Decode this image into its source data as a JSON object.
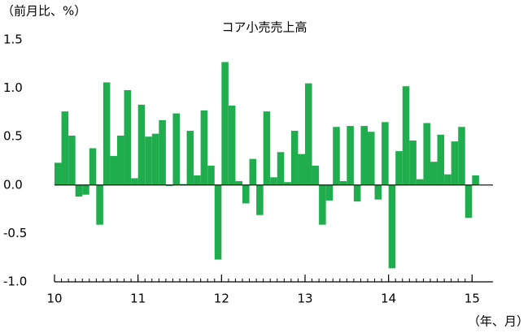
{
  "chart_data": {
    "type": "bar",
    "title": "コア小売売上高",
    "y_label": "（前月比、%）",
    "x_label": "（年、月）",
    "color": "#1fad4e",
    "xlim": [
      10,
      15.25
    ],
    "xticks": [
      10,
      11,
      12,
      13,
      14,
      15
    ],
    "ylim": [
      -1,
      1.5
    ],
    "yticks": [
      1.5,
      {
        "value": 1,
        "label": "1.0"
      },
      0.5,
      {
        "value": 0,
        "label": "0.0"
      },
      -0.5,
      {
        "value": -1,
        "label": "-1.0"
      }
    ],
    "bar_width": 0.0833,
    "x": [
      10,
      10.0833,
      10.1667,
      10.25,
      10.3333,
      10.4167,
      10.5,
      10.5833,
      10.6667,
      10.75,
      10.8333,
      10.9167,
      11,
      11.0833,
      11.1667,
      11.25,
      11.3333,
      11.4167,
      11.5,
      11.5833,
      11.6667,
      11.75,
      11.8333,
      11.9167,
      12,
      12.0833,
      12.1667,
      12.25,
      12.3333,
      12.4167,
      12.5,
      12.5833,
      12.6667,
      12.75,
      12.8333,
      12.9167,
      13,
      13.0833,
      13.1667,
      13.25,
      13.3333,
      13.4167,
      13.5,
      13.5833,
      13.6667,
      13.75,
      13.8333,
      13.9167,
      14,
      14.0833,
      14.1667,
      14.25,
      14.3333,
      14.4167,
      14.5,
      14.5833,
      14.6667,
      14.75,
      14.8333,
      14.9167,
      15
    ],
    "values": [
      0.23,
      0.76,
      0.51,
      -0.12,
      -0.1,
      0.38,
      -0.41,
      1.06,
      0.3,
      0.51,
      0.98,
      0.07,
      0.83,
      0.5,
      0.53,
      0.67,
      -0.01,
      0.74,
      0.01,
      0.56,
      0.1,
      0.77,
      0.2,
      -0.77,
      1.27,
      0.82,
      0.04,
      -0.19,
      0.27,
      -0.31,
      0.76,
      0.08,
      0.34,
      0.03,
      0.56,
      0.32,
      1.05,
      0.2,
      -0.41,
      -0.16,
      0.6,
      0.04,
      0.61,
      -0.17,
      0.61,
      0.55,
      -0.15,
      0.65,
      -0.86,
      0.35,
      1.02,
      0.46,
      0.06,
      0.64,
      0.24,
      0.52,
      0.11,
      0.45,
      0.6,
      -0.34,
      0.1
    ]
  }
}
